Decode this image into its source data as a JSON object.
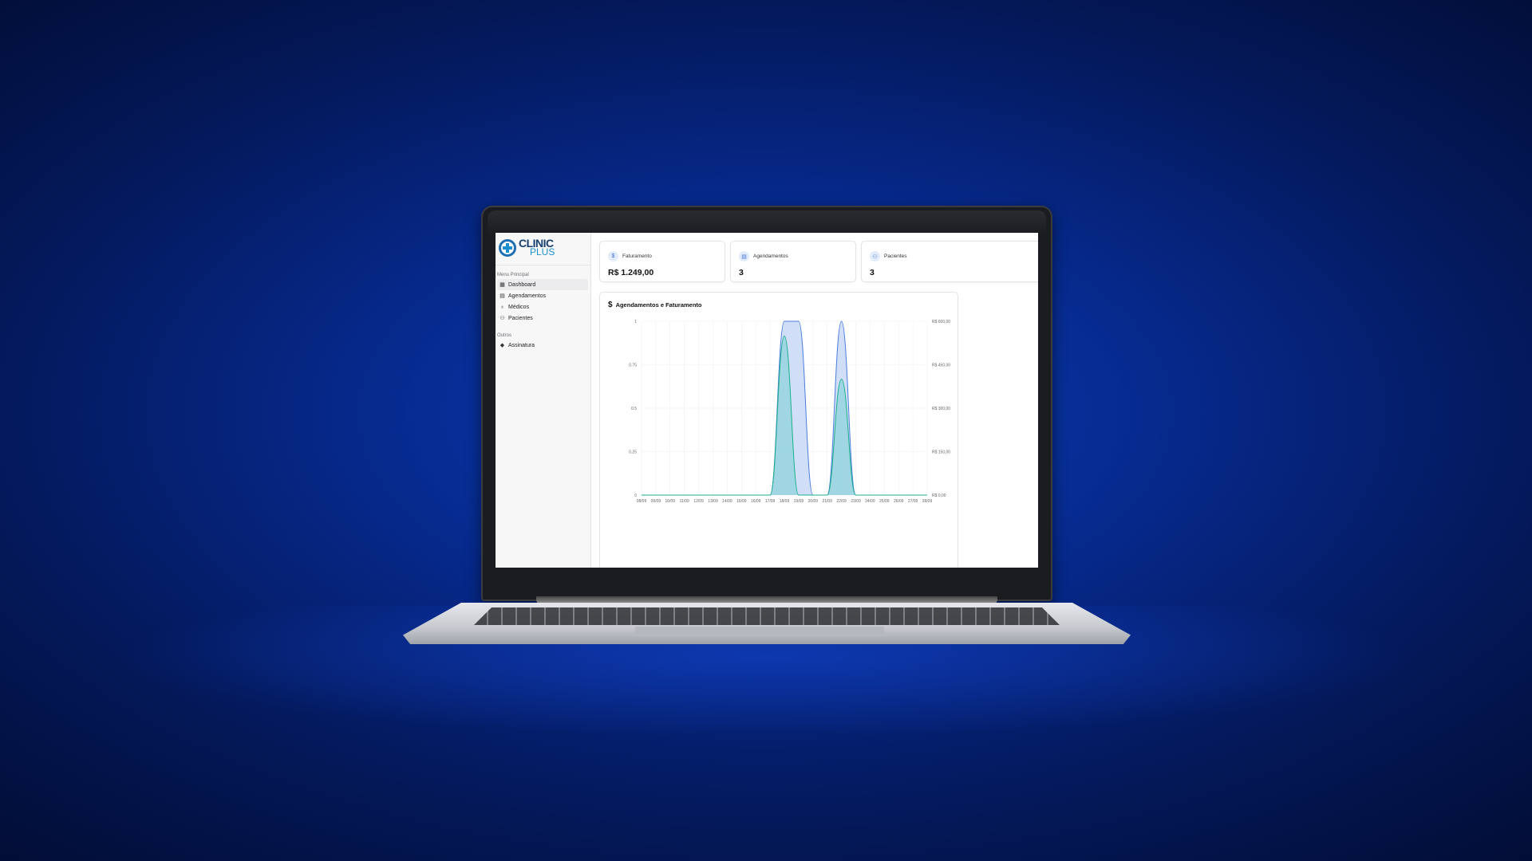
{
  "brand": {
    "name_line1": "CLINIC",
    "name_line2": "PLUS"
  },
  "sidebar": {
    "main_section_label": "Menu Principal",
    "items": [
      {
        "label": "Dashboard",
        "icon": "grid-icon",
        "active": true
      },
      {
        "label": "Agendamentos",
        "icon": "calendar-icon",
        "active": false
      },
      {
        "label": "Médicos",
        "icon": "stethoscope-icon",
        "active": false
      },
      {
        "label": "Pacientes",
        "icon": "users-icon",
        "active": false
      }
    ],
    "other_section_label": "Outros",
    "other_items": [
      {
        "label": "Assinatura",
        "icon": "gem-icon"
      }
    ]
  },
  "summary_cards": [
    {
      "label": "Faturamento",
      "value": "R$ 1.249,00",
      "icon": "dollar-icon"
    },
    {
      "label": "Agendamentos",
      "value": "3",
      "icon": "calendar-icon"
    },
    {
      "label": "Pacientes",
      "value": "3",
      "icon": "user-icon"
    }
  ],
  "colors": {
    "appointments_line": "#4a7de0",
    "appointments_fill": "#c9d8f6",
    "revenue_line": "#19b089",
    "revenue_fill": "#8fd3dc"
  },
  "chart_data": {
    "type": "area",
    "title": "Agendamentos e Faturamento",
    "x": [
      "08/09",
      "09/09",
      "10/09",
      "11/09",
      "12/09",
      "13/09",
      "14/09",
      "15/09",
      "16/09",
      "17/09",
      "18/09",
      "19/09",
      "20/09",
      "21/09",
      "22/09",
      "23/09",
      "24/09",
      "25/09",
      "26/09",
      "27/09",
      "28/09"
    ],
    "y_left_ticks": [
      "0",
      "0.25",
      "0.5",
      "0.75",
      "1"
    ],
    "y_left_lim": [
      0,
      1
    ],
    "y_right_ticks": [
      "R$ 0,00",
      "R$ 150,00",
      "R$ 300,00",
      "R$ 450,00",
      "R$ 600,00"
    ],
    "y_right_lim": [
      0,
      600
    ],
    "grid": true,
    "series": [
      {
        "axis": "left",
        "values": [
          0,
          0,
          0,
          0,
          0,
          0,
          0,
          0,
          0,
          0,
          1,
          1,
          0,
          0,
          1,
          0,
          0,
          0,
          0,
          0,
          0
        ]
      },
      {
        "axis": "right",
        "values": [
          0,
          0,
          0,
          0,
          0,
          0,
          0,
          0,
          0,
          0,
          549,
          0,
          0,
          0,
          400,
          0,
          0,
          0,
          0,
          0,
          0
        ]
      }
    ]
  }
}
